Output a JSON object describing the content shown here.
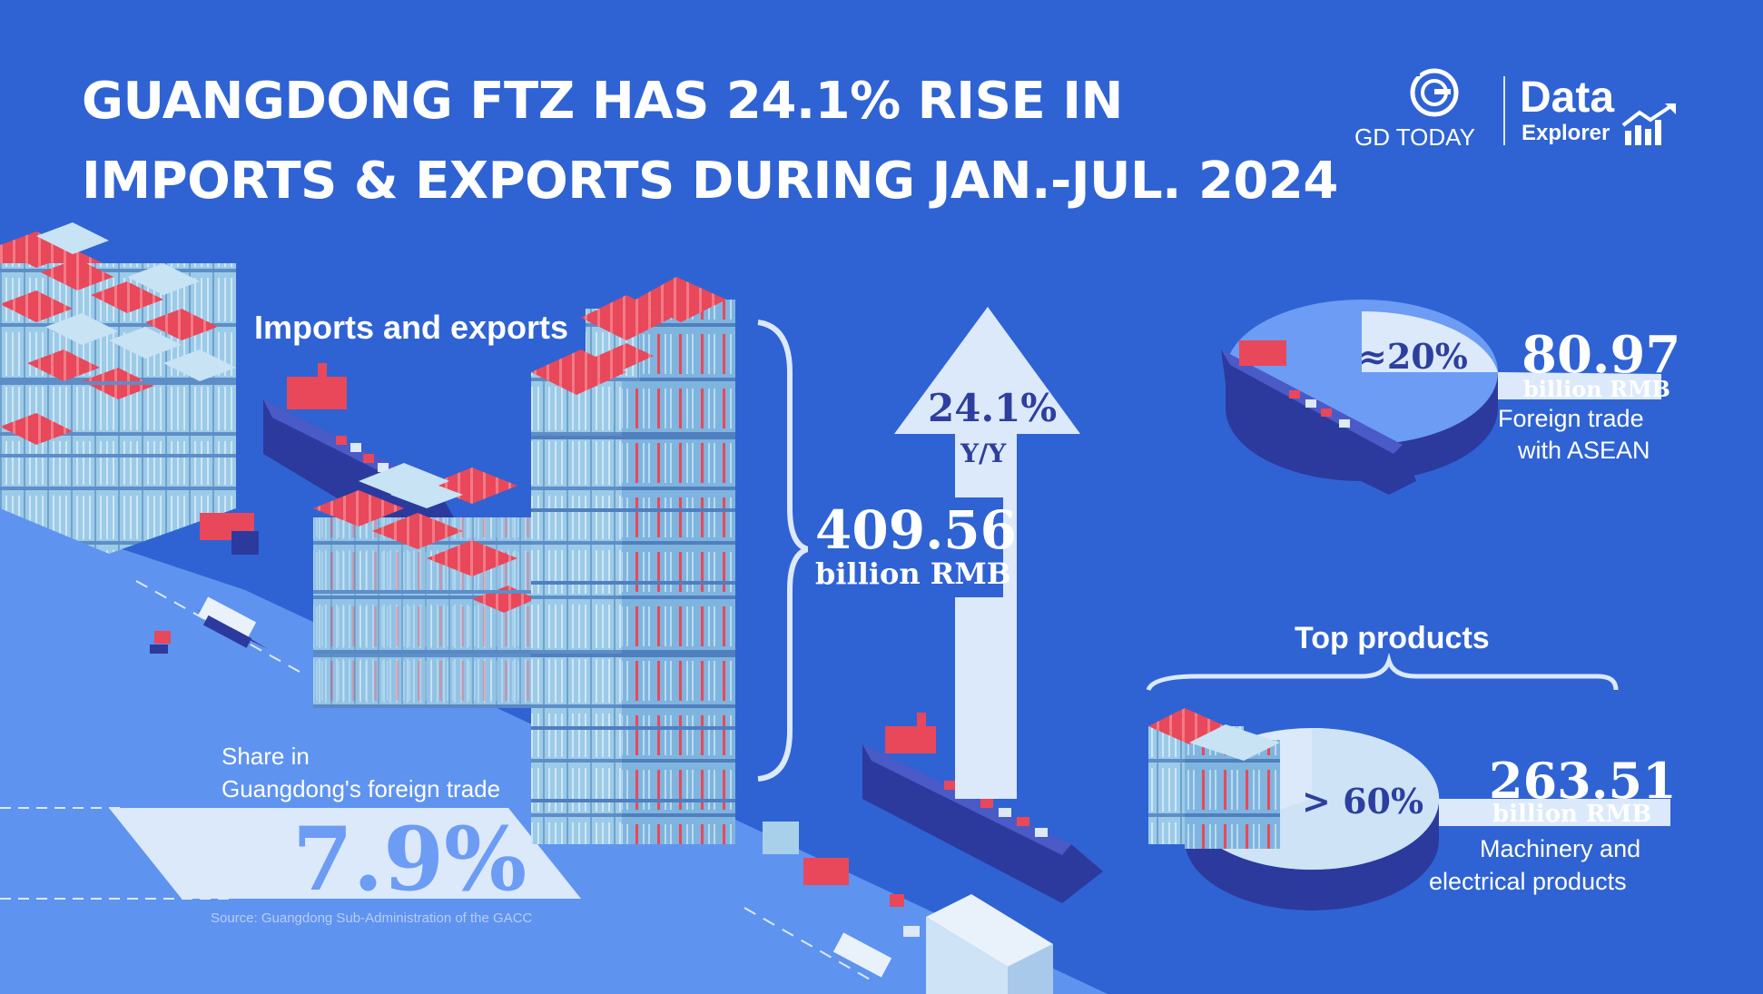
{
  "header": {
    "title_line1": "GUANGDONG FTZ HAS 24.1% RISE IN",
    "title_line2": "IMPORTS & EXPORTS DURING JAN.-JUL. 2024"
  },
  "logos": {
    "gd_today": "GD TODAY",
    "data_explorer_top": "Data",
    "data_explorer_bottom": "Explorer"
  },
  "imports_exports": {
    "label": "Imports and exports",
    "value": "409.56",
    "unit": "billion RMB",
    "growth": "24.1%",
    "growth_label": "Y/Y"
  },
  "share": {
    "label_line1": "Share in",
    "label_line2": "Guangdong's foreign trade",
    "value": "7.9%"
  },
  "asean": {
    "share": "≈20%",
    "value": "80.97",
    "unit": "billion RMB",
    "label_line1": "Foreign trade",
    "label_line2": "with ASEAN"
  },
  "top_products": {
    "label": "Top products",
    "share": "> 60%",
    "value": "263.51",
    "unit": "billion RMB",
    "label_line1": "Machinery and",
    "label_line2": "electrical products"
  },
  "source": "Source: Guangdong Sub-Administration of the GACC",
  "colors": {
    "background": "#2f63d4",
    "light_blue": "#6c9cf4",
    "pale": "#dce9fb",
    "container_red": "#e8485a",
    "container_blue": "#a9d0ea",
    "ship_navy": "#2c3a9e"
  }
}
